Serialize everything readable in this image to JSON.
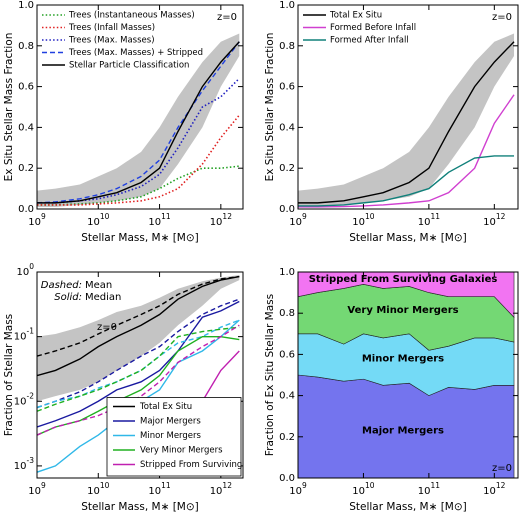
{
  "chart_data": [
    {
      "type": "line",
      "x": [
        1000000000.0,
        2000000000.0,
        5000000000.0,
        10000000000.0,
        20000000000.0,
        50000000000.0,
        100000000000.0,
        200000000000.0,
        500000000000.0,
        1000000000000.0,
        2000000000000.0
      ],
      "xlim": [
        1000000000.0,
        2300000000000.0
      ],
      "xscale": "log",
      "xticks": [
        {
          "value": 1000000000.0,
          "label": "10^9"
        },
        {
          "value": 10000000000.0,
          "label": "10^10"
        },
        {
          "value": 100000000000.0,
          "label": "10^11"
        },
        {
          "value": 1000000000000.0,
          "label": "10^12"
        }
      ],
      "xlabel": "Stellar Mass, M∗ [M⊙]",
      "ylabel": "Ex Situ Stellar Mass Fraction",
      "ylim": [
        0,
        1
      ],
      "yticks": [
        {
          "value": 0,
          "label": "0.0"
        },
        {
          "value": 0.2,
          "label": "0.2"
        },
        {
          "value": 0.4,
          "label": "0.4"
        },
        {
          "value": 0.6,
          "label": "0.6"
        },
        {
          "value": 0.8,
          "label": "0.8"
        },
        {
          "value": 1,
          "label": "1.0"
        }
      ],
      "annotation": "z=0",
      "legend": "upper left",
      "band": {
        "color": "#c4c4c4",
        "lower": [
          0.01,
          0.01,
          0.02,
          0.03,
          0.04,
          0.06,
          0.1,
          0.22,
          0.4,
          0.6,
          0.75
        ],
        "upper": [
          0.09,
          0.1,
          0.12,
          0.16,
          0.2,
          0.28,
          0.4,
          0.55,
          0.72,
          0.82,
          0.86
        ]
      },
      "series": [
        {
          "name": "Trees (Instantaneous Masses)",
          "color": "#22a022",
          "style": "dotted",
          "values": [
            0.02,
            0.02,
            0.025,
            0.03,
            0.04,
            0.06,
            0.1,
            0.15,
            0.2,
            0.2,
            0.21
          ]
        },
        {
          "name": "Trees (Infall Masses)",
          "color": "#e02020",
          "style": "dotted",
          "values": [
            0.02,
            0.02,
            0.02,
            0.025,
            0.03,
            0.04,
            0.06,
            0.1,
            0.22,
            0.35,
            0.46
          ]
        },
        {
          "name": "Trees (Max. Masses)",
          "color": "#2020c0",
          "style": "dotted",
          "values": [
            0.03,
            0.03,
            0.04,
            0.05,
            0.07,
            0.11,
            0.17,
            0.3,
            0.5,
            0.55,
            0.64
          ]
        },
        {
          "name": "Trees (Max. Masses) + Stripped",
          "color": "#2040e0",
          "style": "dashed",
          "values": [
            0.03,
            0.035,
            0.05,
            0.07,
            0.1,
            0.16,
            0.24,
            0.4,
            0.58,
            0.7,
            0.82
          ]
        },
        {
          "name": "Stellar Particle Classification",
          "color": "#000000",
          "style": "solid",
          "values": [
            0.03,
            0.03,
            0.04,
            0.06,
            0.08,
            0.13,
            0.2,
            0.38,
            0.6,
            0.72,
            0.82
          ]
        }
      ]
    },
    {
      "type": "line",
      "x": [
        1000000000.0,
        2000000000.0,
        5000000000.0,
        10000000000.0,
        20000000000.0,
        50000000000.0,
        100000000000.0,
        200000000000.0,
        500000000000.0,
        1000000000000.0,
        2000000000000.0
      ],
      "xlim": [
        1000000000.0,
        2300000000000.0
      ],
      "xscale": "log",
      "xticks": [
        {
          "value": 1000000000.0,
          "label": "10^9"
        },
        {
          "value": 10000000000.0,
          "label": "10^10"
        },
        {
          "value": 100000000000.0,
          "label": "10^11"
        },
        {
          "value": 1000000000000.0,
          "label": "10^12"
        }
      ],
      "xlabel": "Stellar Mass, M∗ [M⊙]",
      "ylabel": "Ex Situ Stellar Mass Fraction",
      "ylim": [
        0,
        1
      ],
      "yticks": [
        {
          "value": 0,
          "label": "0.0"
        },
        {
          "value": 0.2,
          "label": "0.2"
        },
        {
          "value": 0.4,
          "label": "0.4"
        },
        {
          "value": 0.6,
          "label": "0.6"
        },
        {
          "value": 0.8,
          "label": "0.8"
        },
        {
          "value": 1,
          "label": "1.0"
        }
      ],
      "annotation": "z=0",
      "legend": "upper left",
      "band": {
        "color": "#c4c4c4",
        "lower": [
          0.01,
          0.01,
          0.02,
          0.03,
          0.04,
          0.06,
          0.1,
          0.22,
          0.4,
          0.6,
          0.75
        ],
        "upper": [
          0.09,
          0.1,
          0.12,
          0.16,
          0.2,
          0.28,
          0.4,
          0.55,
          0.72,
          0.82,
          0.86
        ]
      },
      "series": [
        {
          "name": "Total Ex Situ",
          "color": "#000000",
          "style": "solid",
          "values": [
            0.03,
            0.03,
            0.04,
            0.06,
            0.08,
            0.13,
            0.2,
            0.38,
            0.6,
            0.72,
            0.82
          ]
        },
        {
          "name": "Formed Before Infall",
          "color": "#d040d0",
          "style": "solid",
          "values": [
            0.01,
            0.01,
            0.012,
            0.015,
            0.02,
            0.03,
            0.04,
            0.08,
            0.2,
            0.42,
            0.56
          ]
        },
        {
          "name": "Formed After Infall",
          "color": "#10807a",
          "style": "solid",
          "values": [
            0.015,
            0.015,
            0.02,
            0.03,
            0.04,
            0.07,
            0.1,
            0.18,
            0.25,
            0.26,
            0.26
          ]
        }
      ]
    },
    {
      "type": "line",
      "ylog": true,
      "x": [
        1000000000.0,
        2000000000.0,
        5000000000.0,
        10000000000.0,
        20000000000.0,
        50000000000.0,
        100000000000.0,
        200000000000.0,
        500000000000.0,
        1000000000000.0,
        2000000000000.0
      ],
      "xlim": [
        1000000000.0,
        2300000000000.0
      ],
      "xscale": "log",
      "xticks": [
        {
          "value": 1000000000.0,
          "label": "10^9"
        },
        {
          "value": 10000000000.0,
          "label": "10^10"
        },
        {
          "value": 100000000000.0,
          "label": "10^11"
        },
        {
          "value": 1000000000000.0,
          "label": "10^12"
        }
      ],
      "xlabel": "Stellar Mass, M∗ [M⊙]",
      "ylabel": "Fraction of Stellar Mass",
      "ylim": [
        0.00065,
        1
      ],
      "yticks": [
        {
          "value": 0.001,
          "label": "10^-3"
        },
        {
          "value": 0.01,
          "label": "10^-2"
        },
        {
          "value": 0.1,
          "label": "10^-1"
        },
        {
          "value": 1,
          "label": "10^0"
        }
      ],
      "annotation": "z=0",
      "legend": "lower right",
      "notes": [
        {
          "key": "Dashed:",
          "text": "Mean"
        },
        {
          "key": "Solid:",
          "text": "Median"
        }
      ],
      "band": {
        "color": "#c4c4c4",
        "lower": [
          0.01,
          0.012,
          0.015,
          0.02,
          0.03,
          0.05,
          0.08,
          0.15,
          0.3,
          0.55,
          0.75
        ],
        "upper": [
          0.1,
          0.11,
          0.14,
          0.18,
          0.24,
          0.3,
          0.4,
          0.55,
          0.72,
          0.82,
          0.9
        ]
      },
      "series": [
        {
          "name": "Total Ex Situ",
          "color": "#000000",
          "values": [
            0.025,
            0.03,
            0.045,
            0.07,
            0.1,
            0.15,
            0.22,
            0.38,
            0.6,
            0.75,
            0.85
          ],
          "mean": [
            0.05,
            0.06,
            0.08,
            0.11,
            0.15,
            0.22,
            0.3,
            0.45,
            0.65,
            0.78,
            0.85
          ]
        },
        {
          "name": "Major Mergers",
          "color": "#1a1aa0",
          "values": [
            0.004,
            0.005,
            0.007,
            0.01,
            0.015,
            0.02,
            0.03,
            0.06,
            0.2,
            0.25,
            0.35
          ],
          "mean": [
            0.008,
            0.01,
            0.014,
            0.02,
            0.03,
            0.05,
            0.07,
            0.12,
            0.22,
            0.3,
            0.38
          ]
        },
        {
          "name": "Minor Mergers",
          "color": "#30b8e8",
          "values": [
            0.0008,
            0.001,
            0.002,
            0.003,
            0.005,
            0.01,
            0.015,
            0.04,
            0.06,
            0.1,
            0.18
          ],
          "mean": [
            0.008,
            0.01,
            0.012,
            0.016,
            0.02,
            0.03,
            0.05,
            0.08,
            0.1,
            0.14,
            0.18
          ]
        },
        {
          "name": "Very Minor Mergers",
          "color": "#20b020",
          "values": [
            0.003,
            0.004,
            0.005,
            0.007,
            0.01,
            0.015,
            0.025,
            0.06,
            0.1,
            0.1,
            0.09
          ],
          "mean": [
            0.007,
            0.009,
            0.012,
            0.015,
            0.02,
            0.03,
            0.05,
            0.1,
            0.12,
            0.13,
            0.14
          ]
        },
        {
          "name": "Stripped From Surviving",
          "color": "#c020b0",
          "values": [
            null,
            null,
            null,
            null,
            null,
            null,
            0.0008,
            0.003,
            0.01,
            0.03,
            0.06
          ],
          "mean": [
            0.003,
            0.004,
            0.005,
            0.006,
            0.008,
            0.012,
            0.02,
            0.04,
            0.07,
            0.1,
            0.15
          ]
        }
      ]
    },
    {
      "type": "area",
      "x": [
        1000000000.0,
        2000000000.0,
        5000000000.0,
        10000000000.0,
        20000000000.0,
        50000000000.0,
        100000000000.0,
        200000000000.0,
        500000000000.0,
        1000000000000.0,
        2000000000000.0
      ],
      "xlim": [
        1000000000.0,
        2300000000000.0
      ],
      "xscale": "log",
      "xticks": [
        {
          "value": 1000000000.0,
          "label": "10^9"
        },
        {
          "value": 10000000000.0,
          "label": "10^10"
        },
        {
          "value": 100000000000.0,
          "label": "10^11"
        },
        {
          "value": 1000000000000.0,
          "label": "10^12"
        }
      ],
      "xlabel": "Stellar Mass, M∗ [M⊙]",
      "ylabel": "Fraction of Ex Situ Stellar Mass",
      "ylim": [
        0,
        1
      ],
      "yticks": [
        {
          "value": 0,
          "label": "0.0"
        },
        {
          "value": 0.2,
          "label": "0.2"
        },
        {
          "value": 0.4,
          "label": "0.4"
        },
        {
          "value": 0.6,
          "label": "0.6"
        },
        {
          "value": 0.8,
          "label": "0.8"
        },
        {
          "value": 1,
          "label": "1.0"
        }
      ],
      "annotation": "z=0",
      "series": [
        {
          "name": "Major Mergers",
          "color": "#7474ee",
          "label_color": "#141480",
          "values": [
            0.5,
            0.49,
            0.47,
            0.48,
            0.45,
            0.46,
            0.4,
            0.44,
            0.43,
            0.45,
            0.45
          ]
        },
        {
          "name": "Minor Mergers",
          "color": "#74daf6",
          "label_color": "#0a7890",
          "values": [
            0.2,
            0.21,
            0.18,
            0.22,
            0.23,
            0.24,
            0.22,
            0.2,
            0.25,
            0.23,
            0.21
          ]
        },
        {
          "name": "Very Minor Mergers",
          "color": "#74d874",
          "label_color": "#0a5a0a",
          "values": [
            0.18,
            0.2,
            0.27,
            0.24,
            0.24,
            0.23,
            0.28,
            0.24,
            0.2,
            0.2,
            0.12
          ]
        },
        {
          "name": "Stripped From Surviving Galaxies",
          "color": "#f274f2",
          "label_color": "#700070",
          "values": [
            0.12,
            0.1,
            0.08,
            0.06,
            0.08,
            0.07,
            0.1,
            0.12,
            0.12,
            0.12,
            0.22
          ]
        }
      ]
    }
  ]
}
